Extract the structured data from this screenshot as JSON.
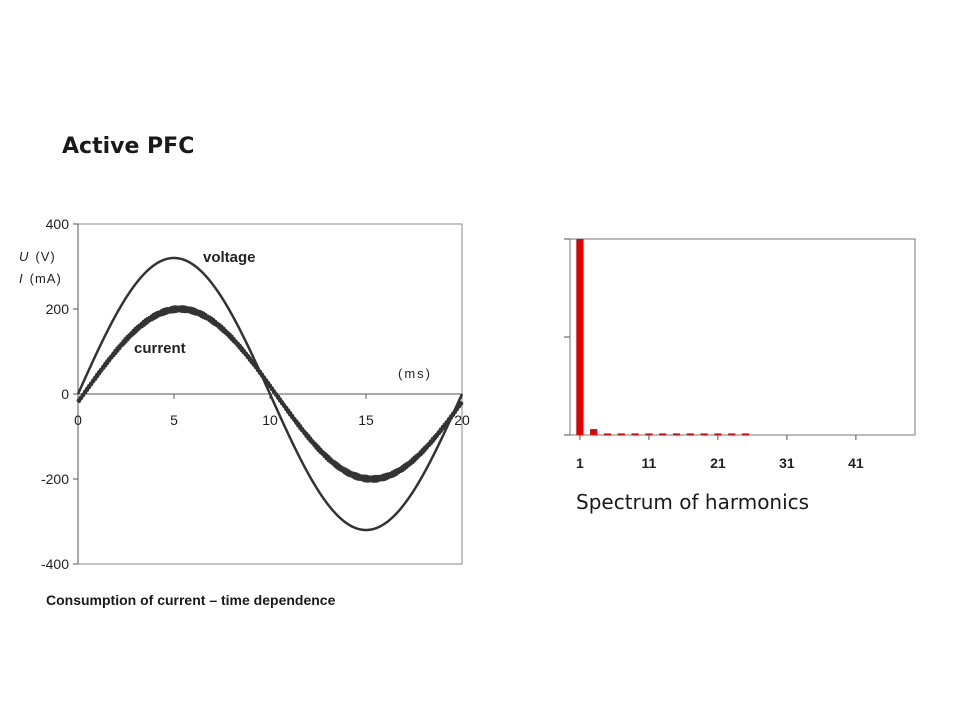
{
  "slide": {
    "title": "Active PFC",
    "left_caption": "Consumption of current – time dependence",
    "right_caption": "Spectrum of harmonics"
  },
  "chart_data": [
    {
      "type": "line",
      "ylabel_lines": [
        {
          "var": "U",
          "unit": "(V)"
        },
        {
          "var": "I",
          "unit": "(mA)"
        }
      ],
      "xunit": "(ms)",
      "xlim": [
        0,
        20
      ],
      "ylim": [
        -400,
        400
      ],
      "x_ticks": [
        "0",
        "5",
        "10",
        "15",
        "20"
      ],
      "x_tick_values": [
        0,
        5,
        10,
        15,
        20
      ],
      "y_ticks": [
        "400",
        "200",
        "0",
        "-200",
        "-400"
      ],
      "y_tick_values": [
        400,
        200,
        0,
        -200,
        -400
      ],
      "grid": false,
      "series": [
        {
          "name": "voltage",
          "amplitude": 320,
          "period_ms": 20,
          "phase_ms": 0,
          "ripple": 0,
          "color": "#333333"
        },
        {
          "name": "current",
          "amplitude": 200,
          "period_ms": 20,
          "phase_ms": 0.3,
          "ripple": 6,
          "color": "#333333"
        }
      ]
    },
    {
      "type": "bar",
      "x_ticks": [
        "1",
        "11",
        "21",
        "31",
        "41"
      ],
      "x_tick_values": [
        1,
        11,
        21,
        31,
        41
      ],
      "xlim": [
        0,
        50
      ],
      "ylim": [
        0,
        1
      ],
      "grid": false,
      "bar_color": "#e00000",
      "harmonics": [
        1,
        3,
        5,
        7,
        9,
        11,
        13,
        15,
        17,
        19,
        21,
        23,
        25
      ],
      "values": [
        1.0,
        0.03,
        0.008,
        0.008,
        0.008,
        0.008,
        0.008,
        0.008,
        0.008,
        0.008,
        0.008,
        0.008,
        0.008
      ]
    }
  ]
}
